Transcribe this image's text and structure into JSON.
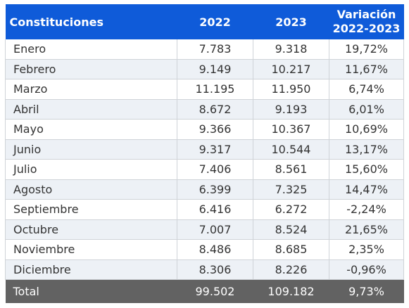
{
  "header": {
    "col1": "Constituciones",
    "col2": "2022",
    "col3": "2023",
    "col4_line1": "Variación",
    "col4_line2": "2022-2023"
  },
  "rows": [
    {
      "month": "Enero",
      "y2022": "7.783",
      "y2023": "9.318",
      "variation": "19,72%"
    },
    {
      "month": "Febrero",
      "y2022": "9.149",
      "y2023": "10.217",
      "variation": "11,67%"
    },
    {
      "month": "Marzo",
      "y2022": "11.195",
      "y2023": "11.950",
      "variation": "6,74%"
    },
    {
      "month": "Abril",
      "y2022": "8.672",
      "y2023": "9.193",
      "variation": "6,01%"
    },
    {
      "month": "Mayo",
      "y2022": "9.366",
      "y2023": "10.367",
      "variation": "10,69%"
    },
    {
      "month": "Junio",
      "y2022": "9.317",
      "y2023": "10.544",
      "variation": "13,17%"
    },
    {
      "month": "Julio",
      "y2022": "7.406",
      "y2023": "8.561",
      "variation": "15,60%"
    },
    {
      "month": "Agosto",
      "y2022": "6.399",
      "y2023": "7.325",
      "variation": "14,47%"
    },
    {
      "month": "Septiembre",
      "y2022": "6.416",
      "y2023": "6.272",
      "variation": "-2,24%"
    },
    {
      "month": "Octubre",
      "y2022": "7.007",
      "y2023": "8.524",
      "variation": "21,65%"
    },
    {
      "month": "Noviembre",
      "y2022": "8.486",
      "y2023": "8.685",
      "variation": "2,35%"
    },
    {
      "month": "Diciembre",
      "y2022": "8.306",
      "y2023": "8.226",
      "variation": "-0,96%"
    }
  ],
  "total": {
    "label": "Total",
    "y2022": "99.502",
    "y2023": "109.182",
    "variation": "9,73%"
  },
  "colors": {
    "header_bg": "#0f5bd9",
    "alt_row_bg": "#edf1f6",
    "total_bg": "#626262"
  }
}
